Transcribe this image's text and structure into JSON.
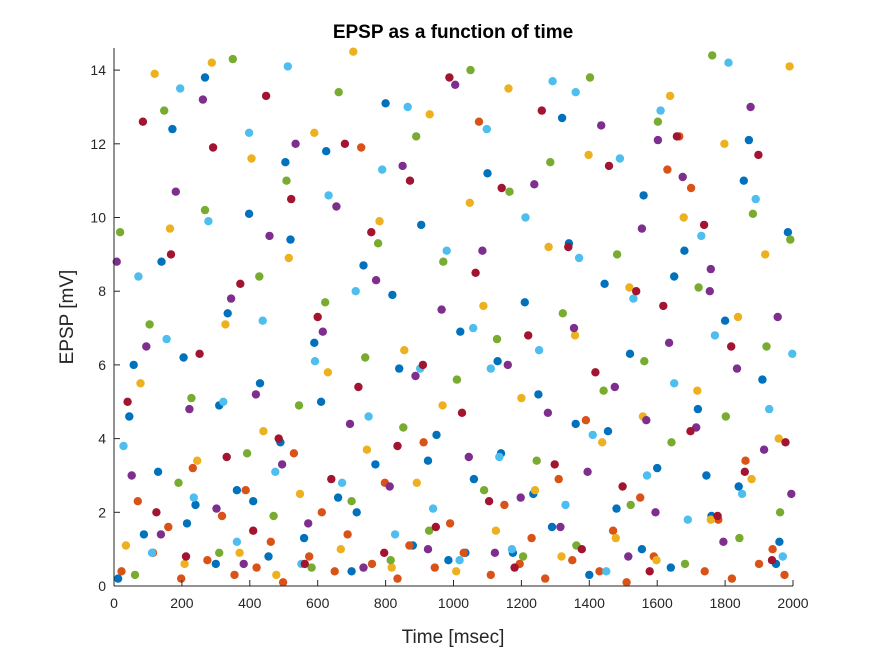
{
  "chart_data": {
    "type": "scatter",
    "title": "EPSP as a function of time",
    "xlabel": "Time [msec]",
    "ylabel": "EPSP [mV]",
    "xlim": [
      0,
      2000
    ],
    "ylim": [
      0,
      14.6
    ],
    "xticks": [
      0,
      200,
      400,
      600,
      800,
      1000,
      1200,
      1400,
      1600,
      1800,
      2000
    ],
    "yticks": [
      0,
      2,
      4,
      6,
      8,
      10,
      12,
      14
    ],
    "grid": false,
    "series_colors": [
      "#0072BD",
      "#D95319",
      "#EDB120",
      "#7E2F8E",
      "#77AC30",
      "#4DBEEE",
      "#A2142F"
    ],
    "series": [
      {
        "color": "#0072BD",
        "x": [
          12,
          45,
          88,
          130,
          172,
          205,
          240,
          268,
          300,
          335,
          362,
          398,
          430,
          455,
          490,
          520,
          560,
          590,
          625,
          660,
          700,
          735,
          770,
          800,
          840,
          880,
          905,
          950,
          985,
          1020,
          1060,
          1100,
          1140,
          1175,
          1210,
          1250,
          1290,
          1320,
          1360,
          1400,
          1445,
          1480,
          1520,
          1560,
          1600,
          1640,
          1680,
          1720,
          1760,
          1800,
          1840,
          1870,
          1910,
          1950,
          1985,
          58,
          140,
          215,
          310,
          410,
          505,
          610,
          715,
          820,
          925,
          1035,
          1130,
          1235,
          1340,
          1455,
          1555,
          1650,
          1745,
          1855,
          1960
        ],
        "y": [
          0.2,
          4.6,
          1.4,
          3.1,
          12.4,
          6.2,
          2.2,
          13.8,
          0.6,
          7.4,
          2.6,
          10.1,
          5.5,
          0.8,
          3.9,
          9.4,
          1.3,
          6.6,
          11.8,
          2.4,
          0.4,
          8.7,
          3.3,
          13.1,
          5.9,
          1.1,
          9.8,
          4.1,
          0.7,
          6.9,
          2.9,
          11.2,
          3.6,
          0.9,
          7.7,
          5.2,
          1.6,
          12.7,
          4.4,
          0.3,
          8.2,
          2.1,
          6.3,
          10.6,
          3.2,
          0.5,
          9.1,
          4.8,
          1.9,
          7.2,
          2.7,
          12.1,
          5.6,
          0.6,
          9.6,
          6.0,
          8.8,
          1.7,
          4.9,
          2.3,
          11.5,
          5.0,
          2.0,
          7.9,
          3.4,
          0.9,
          6.1,
          2.5,
          9.3,
          4.2,
          1.0,
          8.4,
          3.0,
          11.0,
          1.2
        ]
      },
      {
        "color": "#D95319",
        "x": [
          22,
          70,
          115,
          160,
          198,
          232,
          275,
          318,
          355,
          388,
          420,
          462,
          498,
          530,
          575,
          612,
          650,
          688,
          728,
          760,
          798,
          835,
          870,
          912,
          945,
          990,
          1030,
          1075,
          1110,
          1150,
          1195,
          1230,
          1270,
          1310,
          1350,
          1390,
          1430,
          1470,
          1510,
          1550,
          1590,
          1630,
          1665,
          1700,
          1740,
          1780,
          1820,
          1860,
          1900,
          1940,
          1975
        ],
        "y": [
          0.4,
          2.3,
          0.9,
          1.6,
          0.2,
          3.2,
          0.7,
          1.9,
          0.3,
          2.6,
          0.5,
          1.2,
          0.1,
          3.6,
          0.8,
          2.0,
          0.4,
          1.4,
          11.9,
          0.6,
          2.8,
          0.2,
          1.1,
          3.9,
          0.5,
          1.7,
          0.9,
          12.6,
          0.3,
          2.2,
          0.6,
          1.3,
          0.2,
          2.9,
          0.7,
          4.5,
          0.4,
          1.5,
          0.1,
          2.4,
          0.8,
          11.3,
          12.2,
          10.8,
          0.4,
          1.8,
          0.2,
          3.4,
          0.6,
          1.0,
          0.3
        ]
      },
      {
        "color": "#EDB120",
        "x": [
          35,
          78,
          120,
          165,
          208,
          245,
          288,
          328,
          370,
          405,
          440,
          478,
          515,
          548,
          590,
          630,
          668,
          705,
          745,
          782,
          818,
          855,
          892,
          930,
          968,
          1008,
          1048,
          1088,
          1125,
          1162,
          1200,
          1240,
          1280,
          1318,
          1358,
          1398,
          1438,
          1478,
          1518,
          1558,
          1598,
          1638,
          1678,
          1718,
          1758,
          1798,
          1838,
          1878,
          1918,
          1958,
          1990
        ],
        "y": [
          1.1,
          5.5,
          13.9,
          9.7,
          0.6,
          3.4,
          14.2,
          7.1,
          0.9,
          11.6,
          4.2,
          0.3,
          8.9,
          2.5,
          12.3,
          5.8,
          1.0,
          14.5,
          3.7,
          9.9,
          0.5,
          6.4,
          2.8,
          12.8,
          4.9,
          0.4,
          10.4,
          7.6,
          1.5,
          13.5,
          5.1,
          2.6,
          9.2,
          0.8,
          6.8,
          11.7,
          3.9,
          1.3,
          8.1,
          4.6,
          0.7,
          13.3,
          10.0,
          5.3,
          1.8,
          12.0,
          7.3,
          2.9,
          9.0,
          4.0,
          14.1
        ]
      },
      {
        "color": "#7E2F8E",
        "x": [
          8,
          52,
          95,
          138,
          182,
          222,
          262,
          302,
          345,
          382,
          418,
          458,
          495,
          535,
          572,
          615,
          655,
          695,
          735,
          772,
          812,
          850,
          888,
          925,
          965,
          1005,
          1045,
          1085,
          1122,
          1160,
          1198,
          1238,
          1278,
          1315,
          1355,
          1395,
          1435,
          1475,
          1515,
          1555,
          1595,
          1635,
          1675,
          1715,
          1755,
          1795,
          1835,
          1875,
          1915,
          1955,
          1995,
          1568,
          1602,
          1758
        ],
        "y": [
          8.8,
          3.0,
          6.5,
          1.4,
          10.7,
          4.8,
          13.2,
          2.1,
          7.8,
          0.6,
          5.2,
          9.5,
          3.3,
          12.0,
          1.7,
          6.9,
          10.3,
          4.4,
          0.5,
          8.3,
          2.7,
          11.4,
          5.7,
          1.0,
          7.5,
          13.6,
          3.5,
          9.1,
          0.9,
          6.0,
          2.4,
          10.9,
          4.7,
          1.6,
          7.0,
          3.1,
          12.5,
          5.4,
          0.8,
          9.7,
          2.0,
          6.6,
          11.1,
          4.3,
          8.0,
          1.2,
          5.9,
          13.0,
          3.7,
          7.3,
          2.5,
          4.5,
          12.1,
          8.6
        ]
      },
      {
        "color": "#77AC30",
        "x": [
          18,
          62,
          105,
          148,
          190,
          228,
          268,
          310,
          350,
          392,
          428,
          470,
          508,
          545,
          582,
          622,
          662,
          700,
          740,
          778,
          815,
          852,
          890,
          928,
          970,
          1010,
          1050,
          1090,
          1128,
          1165,
          1205,
          1245,
          1285,
          1322,
          1362,
          1402,
          1442,
          1482,
          1522,
          1562,
          1602,
          1642,
          1682,
          1722,
          1762,
          1802,
          1842,
          1882,
          1922,
          1962,
          1992
        ],
        "y": [
          9.6,
          0.3,
          7.1,
          12.9,
          2.8,
          5.1,
          10.2,
          0.9,
          14.3,
          3.6,
          8.4,
          1.9,
          11.0,
          4.9,
          0.5,
          7.7,
          13.4,
          2.3,
          6.2,
          9.3,
          0.7,
          4.3,
          12.2,
          1.5,
          8.8,
          5.6,
          14.0,
          2.6,
          6.7,
          10.7,
          0.8,
          3.4,
          11.5,
          7.4,
          1.1,
          13.8,
          5.3,
          9.0,
          2.2,
          6.1,
          12.6,
          3.9,
          0.6,
          8.1,
          14.4,
          4.6,
          1.3,
          10.1,
          6.5,
          2.0,
          9.4
        ]
      },
      {
        "color": "#4DBEEE",
        "x": [
          28,
          72,
          112,
          155,
          195,
          235,
          278,
          322,
          362,
          398,
          438,
          475,
          512,
          552,
          592,
          632,
          672,
          712,
          750,
          790,
          828,
          865,
          902,
          940,
          980,
          1018,
          1058,
          1098,
          1135,
          1172,
          1212,
          1252,
          1292,
          1330,
          1370,
          1410,
          1450,
          1490,
          1530,
          1570,
          1610,
          1650,
          1690,
          1730,
          1770,
          1810,
          1850,
          1890,
          1930,
          1970,
          1998,
          1360,
          1110
        ],
        "y": [
          3.8,
          8.4,
          0.9,
          6.7,
          13.5,
          2.4,
          9.9,
          5.0,
          1.2,
          12.3,
          7.2,
          3.1,
          14.1,
          0.6,
          6.1,
          10.6,
          2.8,
          8.0,
          4.6,
          11.3,
          1.4,
          13.0,
          5.9,
          2.1,
          9.1,
          0.7,
          7.0,
          12.4,
          3.5,
          1.0,
          10.0,
          6.4,
          13.7,
          2.2,
          8.9,
          4.1,
          0.4,
          11.6,
          7.8,
          3.0,
          12.9,
          5.5,
          1.8,
          9.5,
          6.8,
          14.2,
          2.5,
          10.5,
          4.8,
          0.8,
          6.3,
          13.4,
          5.9
        ]
      },
      {
        "color": "#A2142F",
        "x": [
          40,
          85,
          125,
          168,
          212,
          252,
          292,
          332,
          372,
          410,
          448,
          485,
          522,
          562,
          600,
          640,
          680,
          720,
          758,
          796,
          835,
          872,
          910,
          948,
          988,
          1025,
          1065,
          1105,
          1142,
          1180,
          1220,
          1260,
          1298,
          1338,
          1378,
          1418,
          1458,
          1498,
          1538,
          1578,
          1618,
          1658,
          1698,
          1738,
          1778,
          1818,
          1858,
          1898,
          1938,
          1978
        ],
        "y": [
          5.0,
          12.6,
          2.0,
          9.0,
          0.8,
          6.3,
          11.9,
          3.5,
          8.2,
          1.5,
          13.3,
          4.0,
          10.5,
          0.6,
          7.3,
          2.9,
          12.0,
          5.4,
          9.6,
          0.9,
          3.8,
          11.0,
          6.0,
          1.6,
          13.8,
          4.7,
          8.5,
          2.3,
          10.8,
          0.5,
          6.8,
          12.9,
          3.3,
          9.2,
          1.0,
          5.8,
          11.4,
          2.7,
          8.0,
          0.4,
          7.6,
          12.2,
          4.2,
          9.8,
          1.9,
          6.5,
          3.1,
          11.7,
          0.7,
          3.9
        ]
      }
    ]
  }
}
